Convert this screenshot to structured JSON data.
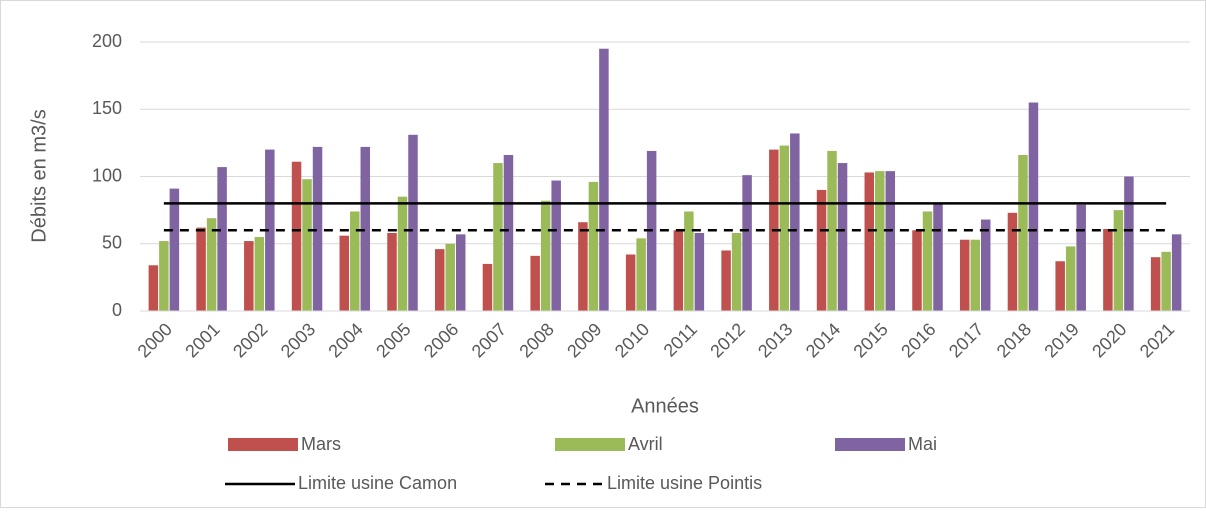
{
  "chart_data": {
    "type": "bar",
    "y_label": "Débits en m3/s",
    "x_label": "Années",
    "categories": [
      "2000",
      "2001",
      "2002",
      "2003",
      "2004",
      "2005",
      "2006",
      "2007",
      "2008",
      "2009",
      "2010",
      "2011",
      "2012",
      "2013",
      "2014",
      "2015",
      "2016",
      "2017",
      "2018",
      "2019",
      "2020",
      "2021"
    ],
    "series": [
      {
        "name": "Mars",
        "color": "#c0504d",
        "values": [
          34,
          62,
          52,
          111,
          56,
          58,
          46,
          35,
          41,
          66,
          42,
          60,
          45,
          120,
          90,
          103,
          60,
          53,
          73,
          37,
          61,
          40
        ]
      },
      {
        "name": "Avril",
        "color": "#9bbb59",
        "values": [
          52,
          69,
          55,
          98,
          74,
          85,
          50,
          110,
          82,
          96,
          54,
          74,
          58,
          123,
          119,
          104,
          74,
          53,
          116,
          48,
          75,
          44
        ]
      },
      {
        "name": "Mai",
        "color": "#8064a2",
        "values": [
          91,
          107,
          120,
          122,
          122,
          131,
          57,
          116,
          97,
          195,
          119,
          58,
          101,
          132,
          110,
          104,
          80,
          68,
          155,
          79,
          100,
          57
        ]
      }
    ],
    "reference_lines": [
      {
        "name": "Limite usine Camon",
        "value": 80,
        "color": "#000000",
        "dashed": false
      },
      {
        "name": "Limite usine Pointis",
        "value": 60,
        "color": "#000000",
        "dashed": true
      }
    ],
    "ylim": [
      0,
      200
    ],
    "yticks": [
      0,
      50,
      100,
      150,
      200
    ],
    "grid": true
  }
}
